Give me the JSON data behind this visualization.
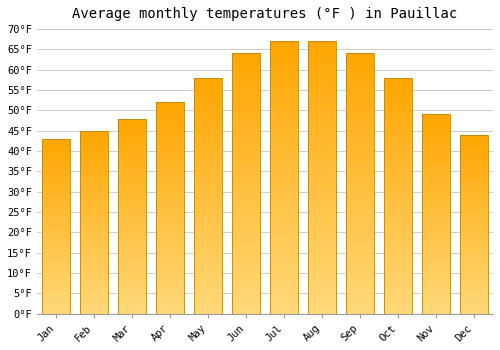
{
  "title": "Average monthly temperatures (°F ) in Pauillac",
  "months": [
    "Jan",
    "Feb",
    "Mar",
    "Apr",
    "May",
    "Jun",
    "Jul",
    "Aug",
    "Sep",
    "Oct",
    "Nov",
    "Dec"
  ],
  "values": [
    43,
    45,
    48,
    52,
    58,
    64,
    67,
    67,
    64,
    58,
    49,
    44
  ],
  "bar_color_top": "#FFA500",
  "bar_color_bottom": "#FFD878",
  "bar_edge_color": "#B8860B",
  "ylim": [
    0,
    70
  ],
  "yticks": [
    0,
    5,
    10,
    15,
    20,
    25,
    30,
    35,
    40,
    45,
    50,
    55,
    60,
    65,
    70
  ],
  "ytick_labels": [
    "0°F",
    "5°F",
    "10°F",
    "15°F",
    "20°F",
    "25°F",
    "30°F",
    "35°F",
    "40°F",
    "45°F",
    "50°F",
    "55°F",
    "60°F",
    "65°F",
    "70°F"
  ],
  "background_color": "#FFFFFF",
  "grid_color": "#CCCCCC",
  "title_fontsize": 10,
  "tick_fontsize": 7.5,
  "bar_width": 0.75,
  "figsize": [
    5.0,
    3.5
  ],
  "dpi": 100
}
